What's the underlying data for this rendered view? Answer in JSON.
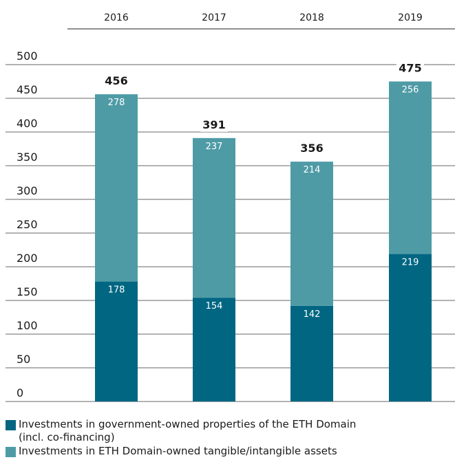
{
  "chart_data": {
    "type": "bar",
    "stacked": true,
    "categories": [
      "2016",
      "2017",
      "2018",
      "2019"
    ],
    "series": [
      {
        "name": "Investments in government-owned properties of the ETH Domain (incl. co-financing)",
        "color": "#006682",
        "values": [
          178,
          154,
          142,
          219
        ]
      },
      {
        "name": "Investments in ETH Domain-owned tangible/intangible assets",
        "color": "#4e9ba6",
        "values": [
          278,
          237,
          214,
          256
        ]
      }
    ],
    "totals": [
      456,
      391,
      356,
      475
    ],
    "yticks": [
      0,
      50,
      100,
      150,
      200,
      250,
      300,
      350,
      400,
      450,
      500
    ],
    "ylim": [
      0,
      500
    ],
    "grid": true,
    "legend": "bottom"
  },
  "legend": {
    "items": [
      {
        "line1": "Investments in government-owned properties of the ETH Domain",
        "line2": "(incl. co-financing)",
        "color": "#006682"
      },
      {
        "line1": "Investments in ETH Domain-owned tangible/intangible assets",
        "line2": "",
        "color": "#4e9ba6"
      }
    ]
  }
}
